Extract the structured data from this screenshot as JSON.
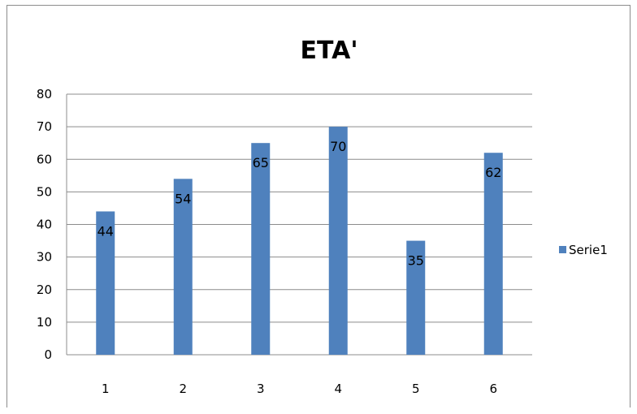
{
  "chart_data": {
    "type": "bar",
    "title": "ETA'",
    "categories": [
      "1",
      "2",
      "3",
      "4",
      "5",
      "6"
    ],
    "series": [
      {
        "name": "Serie1",
        "values": [
          44,
          54,
          65,
          70,
          35,
          62
        ],
        "color": "#4f81bd"
      }
    ],
    "ylim": [
      0,
      80
    ],
    "yticks": [
      0,
      10,
      20,
      30,
      40,
      50,
      60,
      70,
      80
    ],
    "data_labels": true,
    "grid": true,
    "legend_position": "right"
  }
}
